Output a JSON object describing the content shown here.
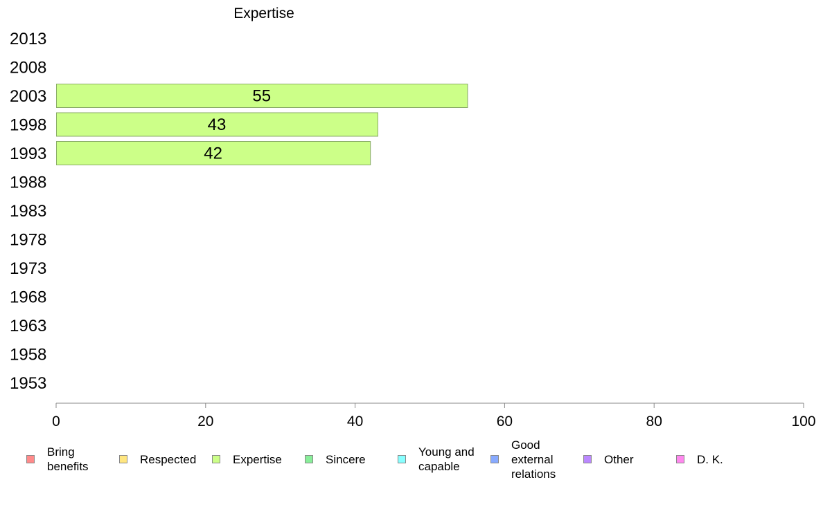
{
  "chart_data": {
    "type": "bar",
    "orientation": "horizontal",
    "title": "Expertise",
    "categories": [
      "2013",
      "2008",
      "2003",
      "1998",
      "1993",
      "1988",
      "1983",
      "1978",
      "1973",
      "1968",
      "1963",
      "1958",
      "1953"
    ],
    "series": [
      {
        "name": "Expertise",
        "values": [
          null,
          null,
          55,
          43,
          42,
          null,
          null,
          null,
          null,
          null,
          null,
          null,
          null
        ]
      }
    ],
    "data_labels": [
      "",
      "",
      "55",
      "43",
      "42",
      "",
      "",
      "",
      "",
      "",
      "",
      "",
      ""
    ],
    "xlim": [
      0,
      100
    ],
    "xticks": [
      "0",
      "20",
      "40",
      "60",
      "80",
      "100"
    ],
    "grid": false,
    "legend_placement": "bottom",
    "bar_color": "#ccff88",
    "bar_edge_color": "#88aa66"
  },
  "legend": [
    {
      "label": "Bring\nbenefits",
      "color": "#ff8a8a"
    },
    {
      "label": "Respected",
      "color": "#ffe680"
    },
    {
      "label": "Expertise",
      "color": "#ccff88"
    },
    {
      "label": "Sincere",
      "color": "#88ee99"
    },
    {
      "label": "Young and\ncapable",
      "color": "#88ffff"
    },
    {
      "label": "Good\nexternal\nrelations",
      "color": "#88aaff"
    },
    {
      "label": "Other",
      "color": "#bb88ff"
    },
    {
      "label": "D. K.",
      "color": "#ff88ee"
    }
  ]
}
